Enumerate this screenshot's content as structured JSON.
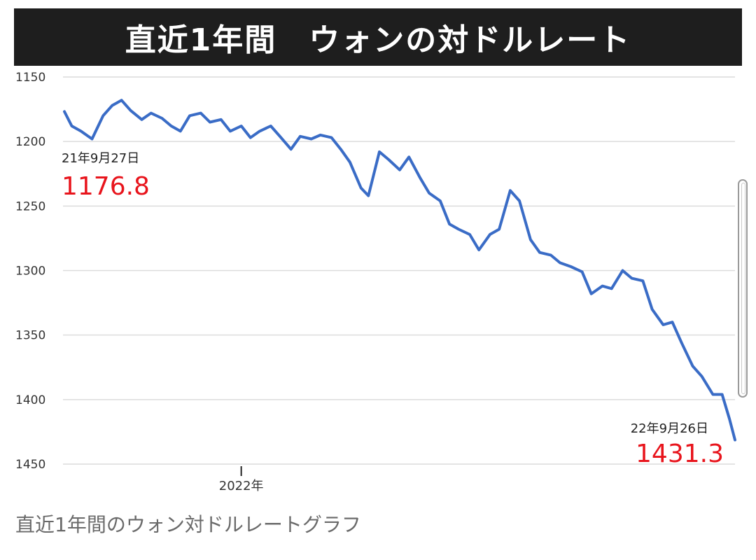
{
  "chart_title": "直近1年間　ウォンの対ドルレート",
  "caption": "直近1年間のウォン対ドルレートグラフ",
  "colors": {
    "title_bg": "#1e1e1e",
    "line": "#3a6cc6",
    "highlight_value": "#e8141c",
    "grid": "#dcdcdc"
  },
  "chart_data": {
    "type": "line",
    "title": "直近1年間　ウォンの対ドルレート",
    "xlabel": "",
    "ylabel": "",
    "ylim": [
      1150,
      1450
    ],
    "y_inverted": true,
    "y_ticks": [
      1150,
      1200,
      1250,
      1300,
      1350,
      1400,
      1450
    ],
    "x_range": [
      "2021-09-27",
      "2022-09-26"
    ],
    "x_tick_labels": [
      {
        "date": "2022-01-01",
        "label": "2022年"
      }
    ],
    "grid": true,
    "legend": "none",
    "annotations": [
      {
        "date_label": "21年9月27日",
        "value_label": "1176.8",
        "position": "start"
      },
      {
        "date_label": "22年9月26日",
        "value_label": "1431.3",
        "position": "end"
      }
    ],
    "series": [
      {
        "x": [
          "2021-09-27",
          "2021-10-01",
          "2021-10-06",
          "2021-10-12",
          "2021-10-18",
          "2021-10-23",
          "2021-10-28",
          "2021-11-02",
          "2021-11-08",
          "2021-11-13",
          "2021-11-19",
          "2021-11-24",
          "2021-11-29",
          "2021-12-04",
          "2021-12-10",
          "2021-12-15",
          "2021-12-21",
          "2021-12-26",
          "2022-01-01",
          "2022-01-06",
          "2022-01-11",
          "2022-01-17",
          "2022-01-22",
          "2022-01-28",
          "2022-02-02",
          "2022-02-08",
          "2022-02-13",
          "2022-02-19",
          "2022-02-24",
          "2022-03-01",
          "2022-03-07",
          "2022-03-11",
          "2022-03-17",
          "2022-03-22",
          "2022-03-28",
          "2022-04-02",
          "2022-04-08",
          "2022-04-13",
          "2022-04-19",
          "2022-04-24",
          "2022-04-29",
          "2022-05-05",
          "2022-05-10",
          "2022-05-16",
          "2022-05-21",
          "2022-05-27",
          "2022-06-01",
          "2022-06-07",
          "2022-06-12",
          "2022-06-18",
          "2022-06-23",
          "2022-06-29",
          "2022-07-05",
          "2022-07-10",
          "2022-07-16",
          "2022-07-21",
          "2022-07-27",
          "2022-08-01",
          "2022-08-07",
          "2022-08-12",
          "2022-08-18",
          "2022-08-23",
          "2022-08-28",
          "2022-09-03",
          "2022-09-08",
          "2022-09-14",
          "2022-09-19",
          "2022-09-23",
          "2022-09-26"
        ],
        "y": [
          1176.8,
          1188,
          1192,
          1198,
          1180,
          1172,
          1168,
          1176,
          1183,
          1178,
          1182,
          1188,
          1192,
          1180,
          1178,
          1185,
          1183,
          1192,
          1188,
          1197,
          1192,
          1188,
          1196,
          1206,
          1196,
          1198,
          1195,
          1197,
          1206,
          1216,
          1236,
          1242,
          1208,
          1214,
          1222,
          1212,
          1228,
          1240,
          1246,
          1264,
          1268,
          1272,
          1284,
          1272,
          1268,
          1238,
          1246,
          1276,
          1286,
          1288,
          1294,
          1297,
          1301,
          1318,
          1312,
          1314,
          1300,
          1306,
          1308,
          1330,
          1342,
          1340,
          1356,
          1374,
          1382,
          1396,
          1396,
          1415,
          1431.3
        ]
      }
    ]
  }
}
